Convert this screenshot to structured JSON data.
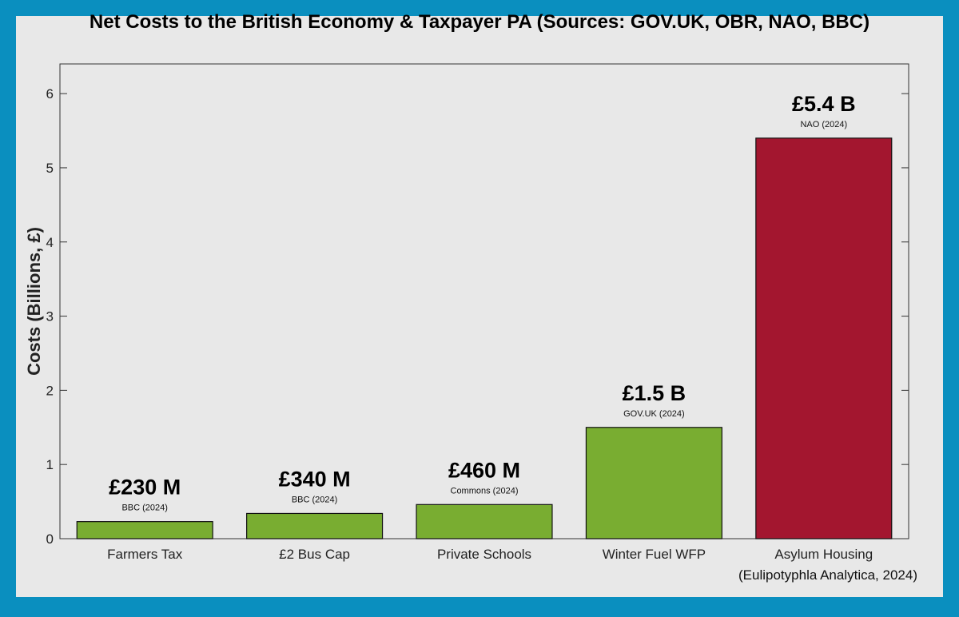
{
  "chart_data": {
    "type": "bar",
    "title": "Net Costs to the British Economy & Taxpayer PA (Sources: GOV.UK, OBR, NAO, BBC)",
    "ylabel": "Costs (Billions, £)",
    "xlabel": "",
    "ylim": [
      0,
      6.4
    ],
    "yticks": [
      0,
      1,
      2,
      3,
      4,
      5,
      6
    ],
    "categories": [
      "Farmers Tax",
      "£2 Bus Cap",
      "Private Schools",
      "Winter Fuel WFP",
      "Asylum Housing"
    ],
    "values": [
      0.23,
      0.34,
      0.46,
      1.5,
      5.4
    ],
    "value_labels": [
      "£230 M",
      "£340 M",
      "£460 M",
      "£1.5 B",
      "£5.4 B"
    ],
    "source_labels": [
      "BBC (2024)",
      "BBC (2024)",
      "Commons (2024)",
      "GOV.UK (2024)",
      "NAO (2024)"
    ],
    "bar_colors": [
      "#79ad31",
      "#79ad31",
      "#79ad31",
      "#79ad31",
      "#a3162f"
    ],
    "grid": false,
    "footnote": "(Eulipotyphla Analytica, 2024)"
  },
  "colors": {
    "background": "#0a8fbf",
    "panel": "#e8e8e8",
    "bar_default": "#79ad31",
    "bar_highlight": "#a3162f"
  }
}
